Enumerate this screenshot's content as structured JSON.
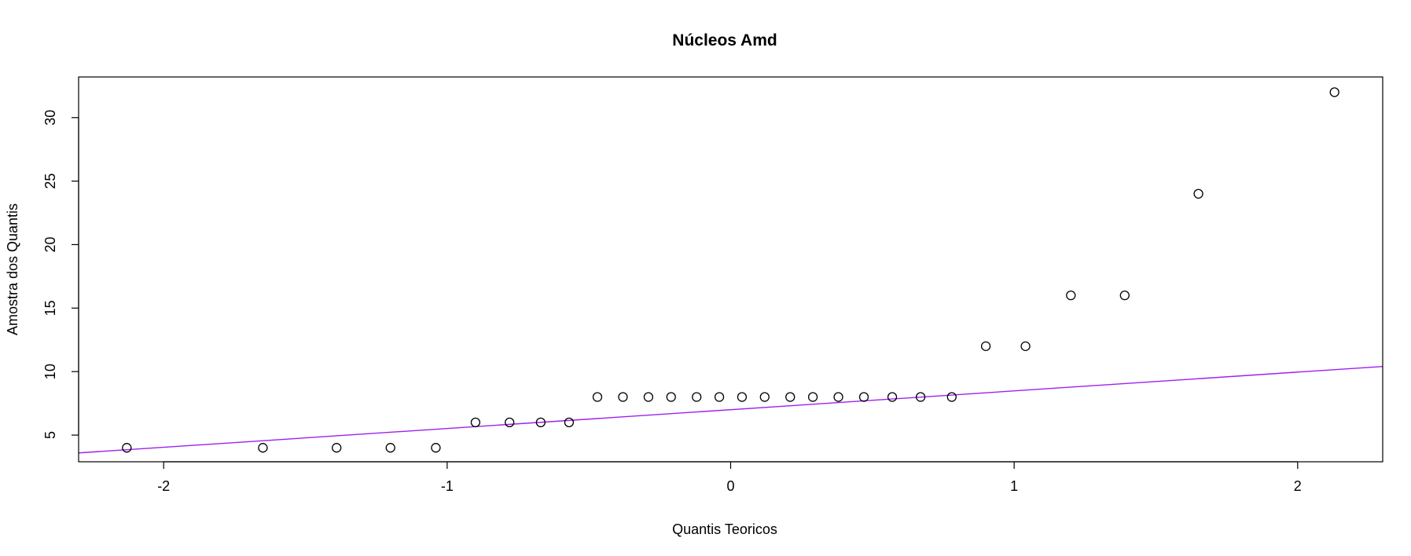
{
  "chart_data": {
    "type": "scatter",
    "title": "Núcleos Amd",
    "xlabel": "Quantis Teoricos",
    "ylabel": "Amostra dos Quantis",
    "xlim": [
      -2.3,
      2.3
    ],
    "ylim": [
      2.9,
      33.2
    ],
    "xticks": [
      "-2",
      "-1",
      "0",
      "1",
      "2"
    ],
    "yticks": [
      "5",
      "10",
      "15",
      "20",
      "25",
      "30"
    ],
    "grid": false,
    "point_color": "#000000",
    "line_color": "#a020f0",
    "series": [
      {
        "x": [
          -2.13,
          -1.65,
          -1.39,
          -1.2,
          -1.04,
          -0.9,
          -0.78,
          -0.67,
          -0.57,
          -0.47,
          -0.38,
          -0.29,
          -0.21,
          -0.12,
          -0.04,
          0.04,
          0.12,
          0.21,
          0.29,
          0.38,
          0.47,
          0.57,
          0.67,
          0.78,
          0.9,
          1.04,
          1.2,
          1.39,
          1.65,
          2.13
        ],
        "y": [
          4,
          4,
          4,
          4,
          4,
          6,
          6,
          6,
          6,
          8,
          8,
          8,
          8,
          8,
          8,
          8,
          8,
          8,
          8,
          8,
          8,
          8,
          8,
          8,
          12,
          12,
          16,
          16,
          24,
          32
        ]
      }
    ],
    "reference_line": {
      "intercept": 7.0,
      "slope": 1.48
    }
  }
}
